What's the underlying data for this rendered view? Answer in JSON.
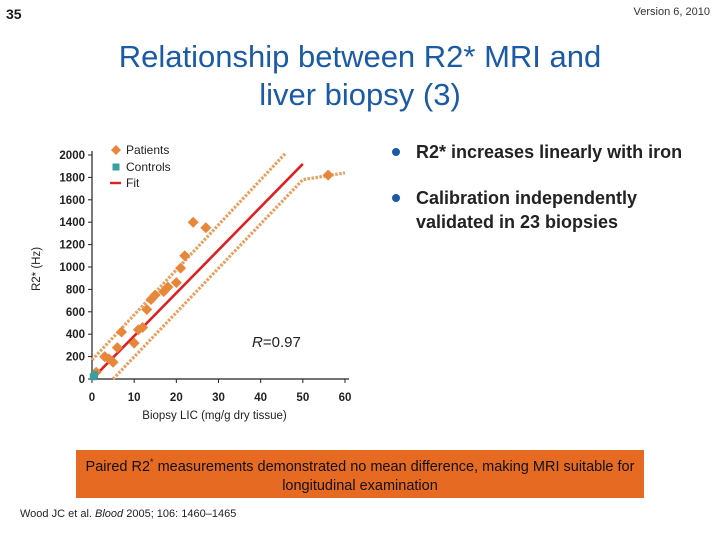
{
  "slide": {
    "number": "35",
    "version": "Version 6, 2010"
  },
  "title": {
    "line1": "Relationship between R2* MRI and",
    "line2": "liver biopsy (3)"
  },
  "bullets": [
    {
      "text": "R2* increases linearly with iron"
    },
    {
      "text": "Calibration independently validated in 23 biopsies"
    }
  ],
  "banner": {
    "part1": "Paired R2",
    "sup": "*",
    "part2": " measurements demonstrated no mean difference, making MRI suitable for longitudinal examination"
  },
  "reference": {
    "authors": "Wood JC et al.",
    "journal": "Blood",
    "details": "2005; 106: 1460–1465"
  },
  "colors": {
    "title": "#1b5aa6",
    "patients": "#e8873a",
    "controls": "#3a9fa0",
    "fit": "#e02020",
    "ci": "#e8a060",
    "banner": "#e66a21"
  },
  "chart_data": {
    "type": "scatter",
    "xlabel": "Biopsy LIC (mg/g dry tissue)",
    "ylabel": "R2* (Hz)",
    "xlim": [
      0,
      60
    ],
    "ylim": [
      0,
      2000
    ],
    "xticks": [
      0,
      10,
      20,
      30,
      40,
      50,
      60
    ],
    "yticks": [
      0,
      200,
      400,
      600,
      800,
      1000,
      1200,
      1400,
      1600,
      1800,
      2000
    ],
    "annotation": {
      "italic": "R",
      "text": "=0.97"
    },
    "legend": [
      "Patients",
      "Controls",
      "Fit"
    ],
    "series": [
      {
        "name": "Patients",
        "marker": "diamond",
        "points": [
          [
            1,
            60
          ],
          [
            3,
            200
          ],
          [
            4,
            180
          ],
          [
            5,
            150
          ],
          [
            6,
            280
          ],
          [
            7,
            420
          ],
          [
            10,
            320
          ],
          [
            11,
            440
          ],
          [
            12,
            460
          ],
          [
            13,
            620
          ],
          [
            14,
            710
          ],
          [
            15,
            750
          ],
          [
            17,
            780
          ],
          [
            18,
            820
          ],
          [
            20,
            860
          ],
          [
            21,
            990
          ],
          [
            22,
            1100
          ],
          [
            24,
            1400
          ],
          [
            27,
            1350
          ],
          [
            56,
            1820
          ]
        ]
      },
      {
        "name": "Controls",
        "marker": "square",
        "points": [
          [
            0.3,
            20
          ],
          [
            0.6,
            40
          ]
        ]
      },
      {
        "name": "Fit",
        "type": "line",
        "points": [
          [
            0,
            0
          ],
          [
            50,
            1920
          ]
        ]
      },
      {
        "name": "Upper CI",
        "type": "line",
        "style": "dashed",
        "points": [
          [
            0,
            170
          ],
          [
            46,
            2020
          ]
        ]
      },
      {
        "name": "Lower CI",
        "type": "line",
        "style": "dashed",
        "points": [
          [
            5,
            0
          ],
          [
            50,
            1780
          ],
          [
            60,
            1840
          ]
        ]
      }
    ]
  }
}
